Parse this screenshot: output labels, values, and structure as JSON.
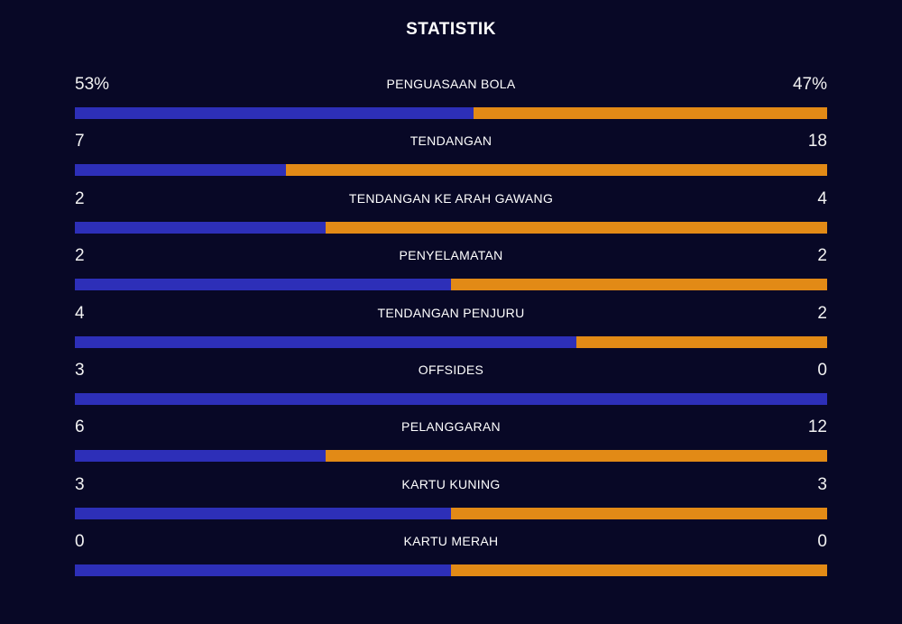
{
  "title": "STATISTIK",
  "colors": {
    "background": "#080826",
    "home_bar": "#2D2FB8",
    "away_bar": "#E28A16",
    "text": "#FFFFFF"
  },
  "stats": [
    {
      "label": "PENGUASAAN BOLA",
      "left": "53%",
      "right": "47%",
      "left_share": 0.53
    },
    {
      "label": "TENDANGAN",
      "left": "7",
      "right": "18",
      "left_share": 0.28
    },
    {
      "label": "TENDANGAN KE ARAH GAWANG",
      "left": "2",
      "right": "4",
      "left_share": 0.3333
    },
    {
      "label": "PENYELAMATAN",
      "left": "2",
      "right": "2",
      "left_share": 0.5
    },
    {
      "label": "TENDANGAN PENJURU",
      "left": "4",
      "right": "2",
      "left_share": 0.6667
    },
    {
      "label": "OFFSIDES",
      "left": "3",
      "right": "0",
      "left_share": 1.0
    },
    {
      "label": "PELANGGARAN",
      "left": "6",
      "right": "12",
      "left_share": 0.3333
    },
    {
      "label": "KARTU KUNING",
      "left": "3",
      "right": "3",
      "left_share": 0.5
    },
    {
      "label": "KARTU MERAH",
      "left": "0",
      "right": "0",
      "left_share": 0.5
    }
  ]
}
